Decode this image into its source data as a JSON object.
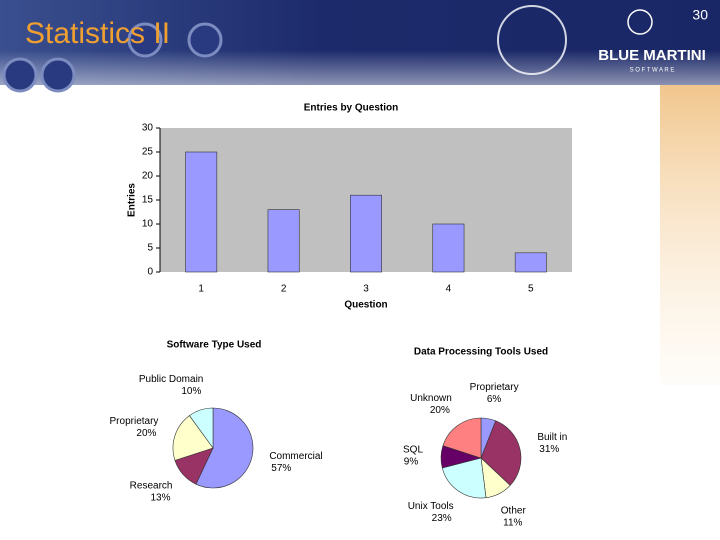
{
  "slide": {
    "title": "Statistics II",
    "page_number": 30,
    "logo": "BLUE MARTINI",
    "logo_sub": "S O F T W A R E"
  },
  "chart_data": [
    {
      "type": "bar",
      "title": "Entries by Question",
      "x_label": "Question",
      "y_label": "Entries",
      "categories": [
        "1",
        "2",
        "3",
        "4",
        "5"
      ],
      "values": [
        25,
        13,
        16,
        10,
        4
      ],
      "color": "#9999ff",
      "ylim": [
        0,
        30
      ],
      "yticks": [
        0,
        5,
        10,
        15,
        20,
        25,
        30
      ]
    },
    {
      "type": "pie",
      "title": "Software Type Used",
      "categories": [
        "Commercial",
        "Research",
        "Proprietary",
        "Public Domain"
      ],
      "values": [
        57,
        13,
        20,
        10
      ],
      "value_labels": [
        "57%",
        "13%",
        "20%",
        "10%"
      ],
      "colors": [
        "#9999ff",
        "#993366",
        "#ffffcc",
        "#ccffff"
      ]
    },
    {
      "type": "pie",
      "title": "Data Processing Tools Used",
      "categories": [
        "Proprietary",
        "Built in",
        "Other",
        "Unix Tools",
        "SQL",
        "Unknown"
      ],
      "values": [
        6,
        31,
        11,
        23,
        9,
        20
      ],
      "value_labels": [
        "6%",
        "31%",
        "11%",
        "23%",
        "9%",
        "20%"
      ],
      "colors": [
        "#9999ff",
        "#993366",
        "#ffffcc",
        "#ccffff",
        "#660066",
        "#ff8080"
      ]
    }
  ]
}
